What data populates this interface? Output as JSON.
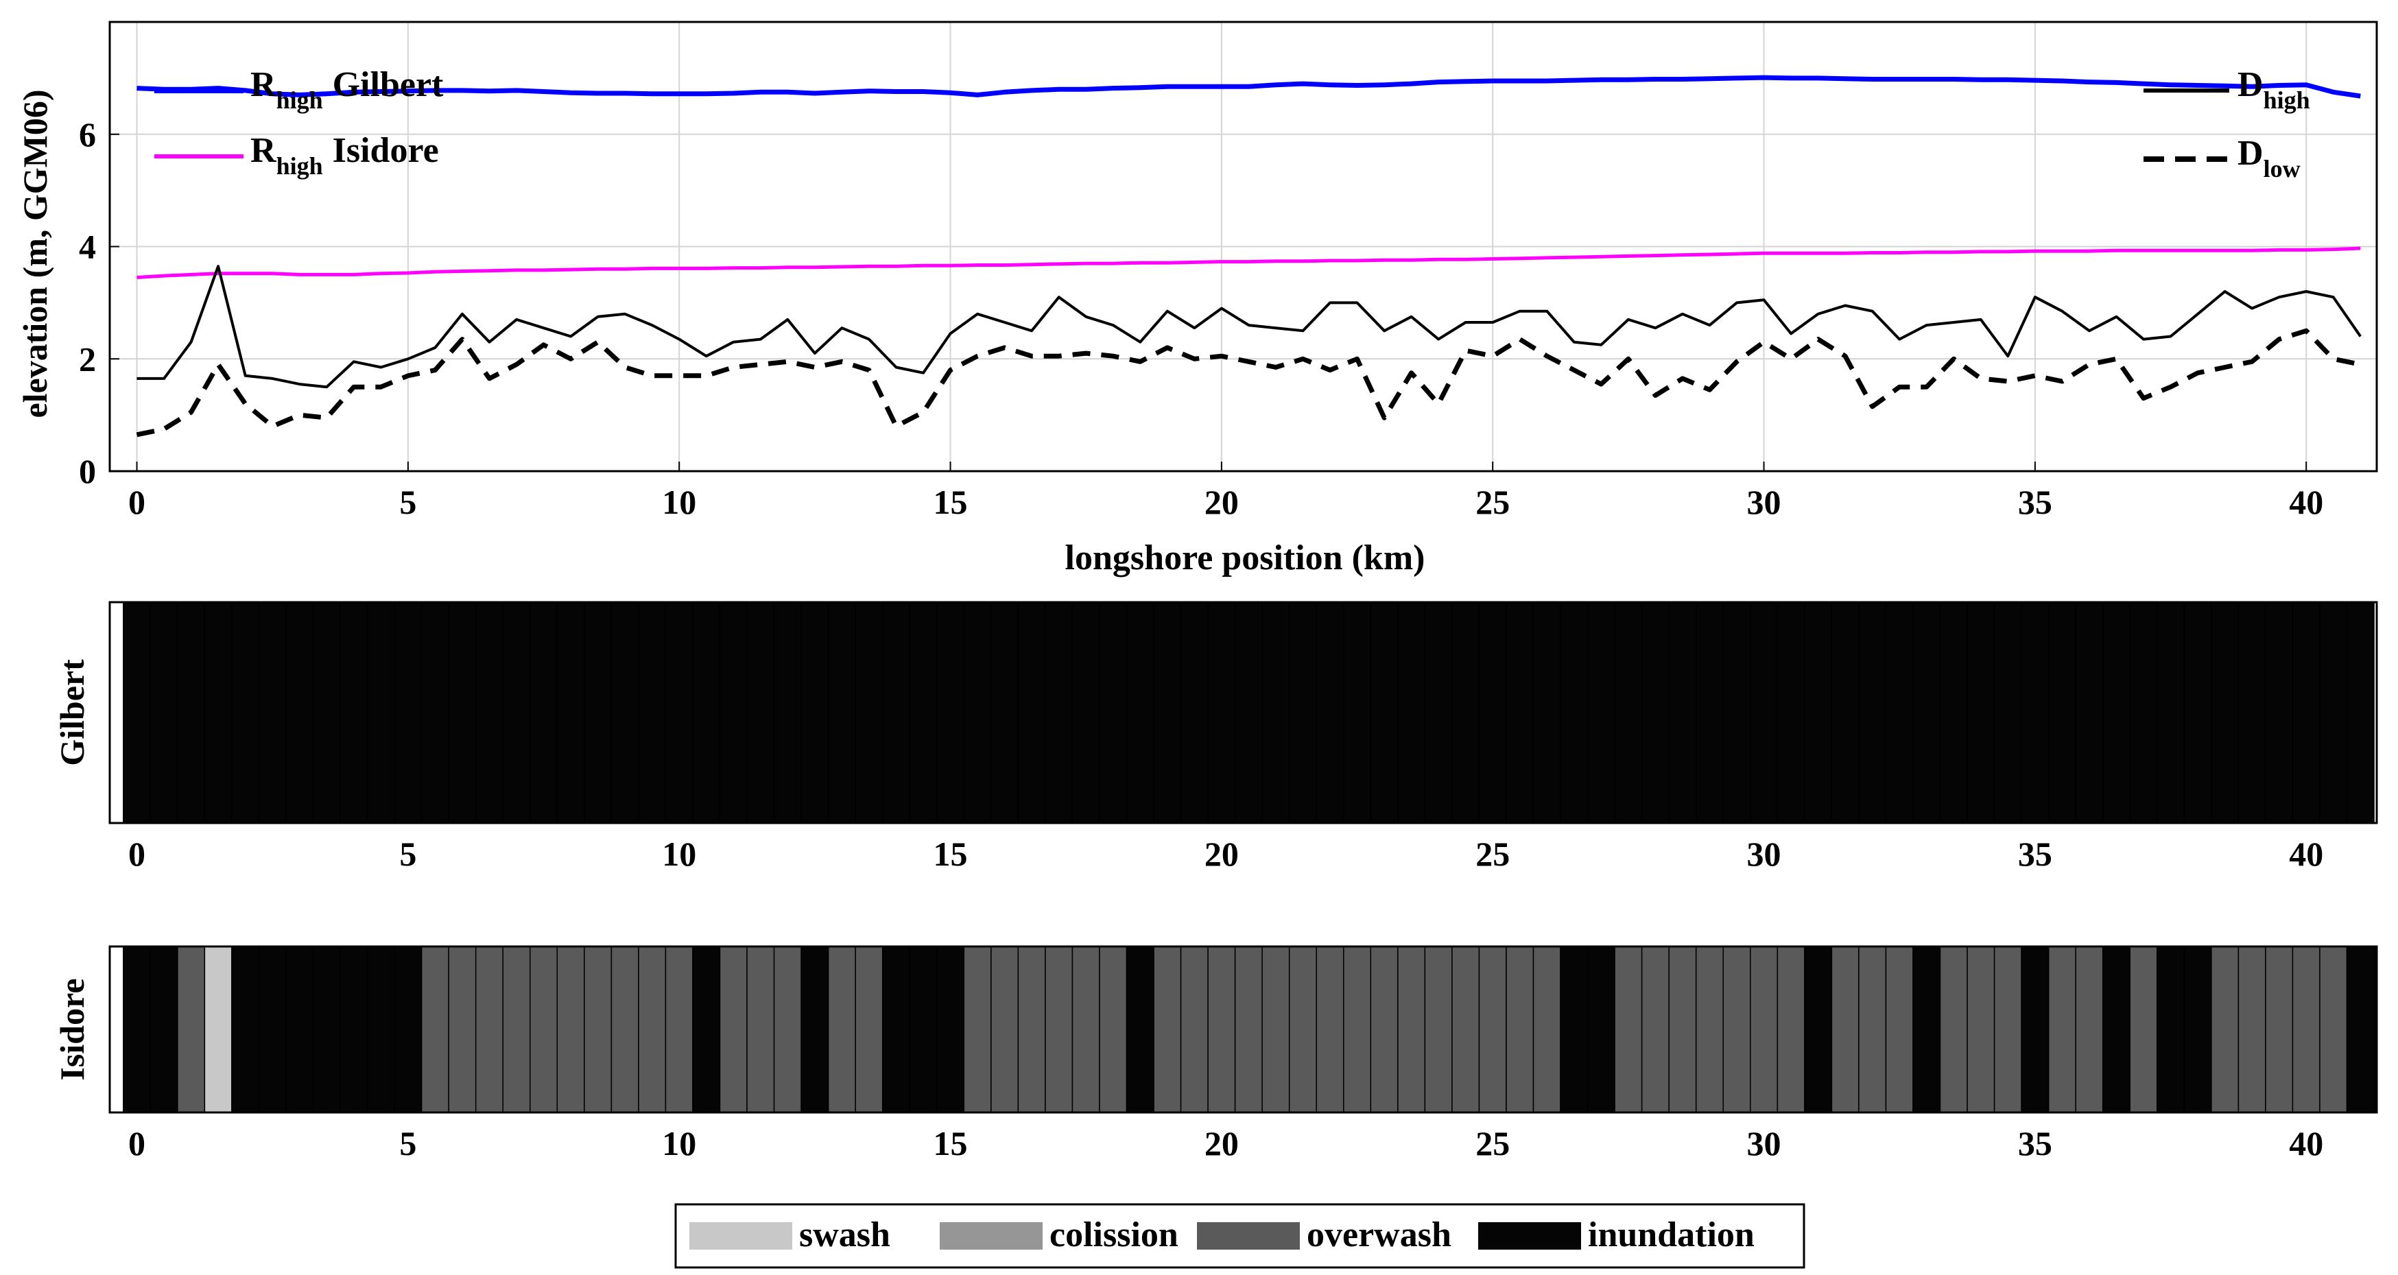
{
  "chart_data": [
    {
      "type": "line",
      "xlabel": "longshore position (km)",
      "ylabel": "elevation (m, GGM06)",
      "xlim": [
        -0.5,
        41.3
      ],
      "ylim": [
        0,
        8
      ],
      "xticks": [
        "0",
        "5",
        "10",
        "15",
        "20",
        "25",
        "30",
        "35",
        "40"
      ],
      "yticks": [
        "0",
        "2",
        "4",
        "6"
      ],
      "grid": true,
      "legend_left": [
        {
          "prefix": "R",
          "sub": "high",
          "name": "Gilbert"
        },
        {
          "prefix": "R",
          "sub": "high",
          "name": "Isidore"
        }
      ],
      "legend_right": [
        {
          "prefix": "D",
          "sub": "high"
        },
        {
          "prefix": "D",
          "sub": "low"
        }
      ],
      "colors": {
        "gilbert": "#0000ff",
        "isidore": "#ff00ff",
        "dune": "#000000"
      },
      "x": [
        0,
        0.5,
        1,
        1.5,
        2,
        2.5,
        3,
        3.5,
        4,
        4.5,
        5,
        5.5,
        6,
        6.5,
        7,
        7.5,
        8,
        8.5,
        9,
        9.5,
        10,
        10.5,
        11,
        11.5,
        12,
        12.5,
        13,
        13.5,
        14,
        14.5,
        15,
        15.5,
        16,
        16.5,
        17,
        17.5,
        18,
        18.5,
        19,
        19.5,
        20,
        20.5,
        21,
        21.5,
        22,
        22.5,
        23,
        23.5,
        24,
        24.5,
        25,
        25.5,
        26,
        26.5,
        27,
        27.5,
        28,
        28.5,
        29,
        29.5,
        30,
        30.5,
        31,
        31.5,
        32,
        32.5,
        33,
        33.5,
        34,
        34.5,
        35,
        35.5,
        36,
        36.5,
        37,
        37.5,
        38,
        38.5,
        39,
        39.5,
        40,
        40.5,
        41
      ],
      "series": [
        {
          "key": "gilbert",
          "style": "solid",
          "values": [
            6.82,
            6.8,
            6.8,
            6.82,
            6.78,
            6.72,
            6.7,
            6.72,
            6.75,
            6.76,
            6.77,
            6.78,
            6.78,
            6.77,
            6.78,
            6.76,
            6.74,
            6.73,
            6.73,
            6.72,
            6.72,
            6.72,
            6.73,
            6.75,
            6.75,
            6.73,
            6.75,
            6.77,
            6.76,
            6.76,
            6.74,
            6.7,
            6.75,
            6.78,
            6.8,
            6.8,
            6.82,
            6.83,
            6.85,
            6.85,
            6.85,
            6.85,
            6.88,
            6.9,
            6.88,
            6.87,
            6.88,
            6.9,
            6.93,
            6.94,
            6.95,
            6.95,
            6.95,
            6.96,
            6.97,
            6.97,
            6.98,
            6.98,
            6.99,
            7.0,
            7.01,
            7.0,
            7.0,
            6.99,
            6.98,
            6.98,
            6.98,
            6.98,
            6.97,
            6.97,
            6.96,
            6.95,
            6.93,
            6.92,
            6.9,
            6.88,
            6.87,
            6.86,
            6.85,
            6.87,
            6.88,
            6.75,
            6.68
          ]
        },
        {
          "key": "isidore",
          "style": "solid",
          "values": [
            3.45,
            3.48,
            3.5,
            3.52,
            3.52,
            3.52,
            3.5,
            3.5,
            3.5,
            3.52,
            3.53,
            3.55,
            3.56,
            3.57,
            3.58,
            3.58,
            3.59,
            3.6,
            3.6,
            3.61,
            3.61,
            3.61,
            3.62,
            3.62,
            3.63,
            3.63,
            3.64,
            3.65,
            3.65,
            3.66,
            3.66,
            3.67,
            3.67,
            3.68,
            3.69,
            3.7,
            3.7,
            3.71,
            3.71,
            3.72,
            3.73,
            3.73,
            3.74,
            3.74,
            3.75,
            3.75,
            3.76,
            3.76,
            3.77,
            3.77,
            3.78,
            3.79,
            3.8,
            3.81,
            3.82,
            3.83,
            3.84,
            3.85,
            3.86,
            3.87,
            3.88,
            3.88,
            3.88,
            3.88,
            3.89,
            3.89,
            3.9,
            3.9,
            3.91,
            3.91,
            3.92,
            3.92,
            3.92,
            3.93,
            3.93,
            3.93,
            3.93,
            3.93,
            3.93,
            3.94,
            3.94,
            3.95,
            3.97
          ]
        },
        {
          "key": "dhigh",
          "style": "solid",
          "values": [
            1.65,
            1.65,
            2.3,
            3.65,
            1.7,
            1.65,
            1.55,
            1.5,
            1.95,
            1.85,
            2.0,
            2.2,
            2.8,
            2.3,
            2.7,
            2.55,
            2.4,
            2.75,
            2.8,
            2.6,
            2.35,
            2.05,
            2.3,
            2.35,
            2.7,
            2.1,
            2.55,
            2.35,
            1.85,
            1.75,
            2.45,
            2.8,
            2.65,
            2.5,
            3.1,
            2.75,
            2.6,
            2.3,
            2.85,
            2.55,
            2.9,
            2.6,
            2.55,
            2.5,
            3.0,
            3.0,
            2.5,
            2.75,
            2.35,
            2.65,
            2.65,
            2.85,
            2.85,
            2.3,
            2.25,
            2.7,
            2.55,
            2.8,
            2.6,
            3.0,
            3.05,
            2.45,
            2.8,
            2.95,
            2.85,
            2.35,
            2.6,
            2.65,
            2.7,
            2.05,
            3.1,
            2.85,
            2.5,
            2.75,
            2.35,
            2.4,
            2.8,
            3.2,
            2.9,
            3.1,
            3.2,
            3.1,
            2.4
          ]
        },
        {
          "key": "dlow",
          "style": "dashed",
          "values": [
            0.65,
            0.75,
            1.05,
            1.9,
            1.2,
            0.8,
            1.0,
            0.95,
            1.5,
            1.5,
            1.7,
            1.8,
            2.35,
            1.65,
            1.9,
            2.25,
            2.0,
            2.3,
            1.85,
            1.7,
            1.7,
            1.7,
            1.85,
            1.9,
            1.95,
            1.85,
            1.95,
            1.8,
            0.8,
            1.05,
            1.8,
            2.05,
            2.2,
            2.05,
            2.05,
            2.1,
            2.05,
            1.95,
            2.2,
            2.0,
            2.05,
            1.95,
            1.85,
            2.0,
            1.8,
            2.0,
            0.95,
            1.75,
            1.2,
            2.15,
            2.05,
            2.35,
            2.05,
            1.8,
            1.55,
            2.0,
            1.35,
            1.65,
            1.45,
            1.95,
            2.3,
            2.0,
            2.35,
            2.05,
            1.15,
            1.5,
            1.5,
            2.0,
            1.65,
            1.6,
            1.7,
            1.6,
            1.9,
            2.0,
            1.3,
            1.5,
            1.75,
            1.85,
            1.95,
            2.35,
            2.5,
            2.0,
            1.9
          ]
        }
      ]
    },
    {
      "type": "heatmap",
      "ylabel": "Gilbert",
      "xticks": [
        "0",
        "5",
        "10",
        "15",
        "20",
        "25",
        "30",
        "35",
        "40"
      ],
      "cell_width_km": 0.5,
      "regime": [
        "inundation",
        "inundation",
        "inundation",
        "inundation",
        "inundation",
        "inundation",
        "inundation",
        "inundation",
        "inundation",
        "inundation",
        "inundation",
        "inundation",
        "inundation",
        "inundation",
        "inundation",
        "inundation",
        "inundation",
        "inundation",
        "inundation",
        "inundation",
        "inundation",
        "inundation",
        "inundation",
        "inundation",
        "inundation",
        "inundation",
        "inundation",
        "inundation",
        "inundation",
        "inundation",
        "inundation",
        "inundation",
        "inundation",
        "inundation",
        "inundation",
        "inundation",
        "inundation",
        "inundation",
        "inundation",
        "inundation",
        "inundation",
        "inundation",
        "inundation",
        "inundation",
        "inundation",
        "inundation",
        "inundation",
        "inundation",
        "inundation",
        "inundation",
        "inundation",
        "inundation",
        "inundation",
        "inundation",
        "inundation",
        "inundation",
        "inundation",
        "inundation",
        "inundation",
        "inundation",
        "inundation",
        "inundation",
        "inundation",
        "inundation",
        "inundation",
        "inundation",
        "inundation",
        "inundation",
        "inundation",
        "inundation",
        "inundation",
        "inundation",
        "inundation",
        "inundation",
        "inundation",
        "inundation",
        "inundation",
        "inundation",
        "inundation",
        "inundation",
        "inundation",
        "inundation",
        "inundation"
      ]
    },
    {
      "type": "heatmap",
      "ylabel": "Isidore",
      "xticks": [
        "0",
        "5",
        "10",
        "15",
        "20",
        "25",
        "30",
        "35",
        "40"
      ],
      "cell_width_km": 0.5,
      "regime": [
        "inundation",
        "inundation",
        "overwash",
        "swash",
        "inundation",
        "inundation",
        "inundation",
        "inundation",
        "inundation",
        "inundation",
        "inundation",
        "overwash",
        "overwash",
        "overwash",
        "overwash",
        "overwash",
        "overwash",
        "overwash",
        "overwash",
        "overwash",
        "overwash",
        "inundation",
        "overwash",
        "overwash",
        "overwash",
        "inundation",
        "overwash",
        "overwash",
        "inundation",
        "inundation",
        "inundation",
        "overwash",
        "overwash",
        "overwash",
        "overwash",
        "overwash",
        "overwash",
        "inundation",
        "overwash",
        "overwash",
        "overwash",
        "overwash",
        "overwash",
        "overwash",
        "overwash",
        "overwash",
        "overwash",
        "overwash",
        "overwash",
        "overwash",
        "overwash",
        "overwash",
        "overwash",
        "inundation",
        "inundation",
        "overwash",
        "overwash",
        "overwash",
        "overwash",
        "overwash",
        "overwash",
        "overwash",
        "inundation",
        "overwash",
        "overwash",
        "overwash",
        "inundation",
        "overwash",
        "overwash",
        "overwash",
        "inundation",
        "overwash",
        "overwash",
        "inundation",
        "overwash",
        "inundation",
        "inundation",
        "overwash",
        "overwash",
        "overwash",
        "overwash",
        "overwash",
        "inundation",
        "inundation"
      ]
    }
  ],
  "regime_legend": [
    {
      "label": "swash",
      "color": "#c8c8c8"
    },
    {
      "label": "colission",
      "color": "#969696"
    },
    {
      "label": "overwash",
      "color": "#5a5a5a"
    },
    {
      "label": "inundation",
      "color": "#050505"
    }
  ]
}
